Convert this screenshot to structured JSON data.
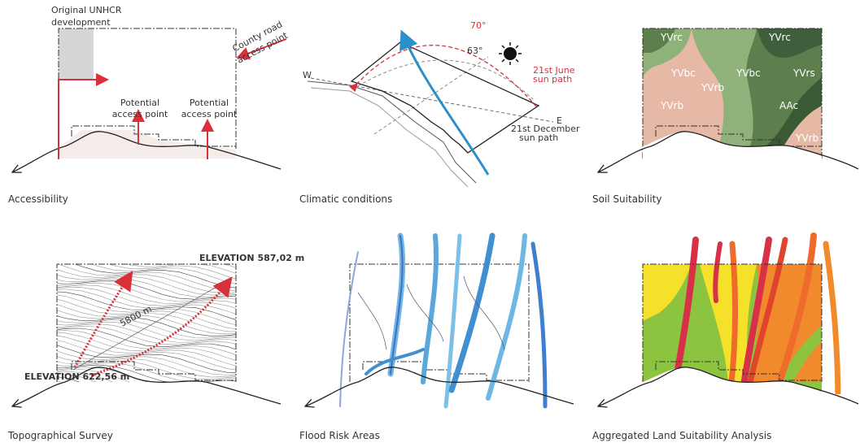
{
  "panels": [
    {
      "caption": "Accessibility",
      "labels": [
        "Original UNHCR",
        "development",
        "County road",
        "access point",
        "Potential",
        "access point",
        "Potential",
        "access point"
      ]
    },
    {
      "caption": "Climatic conditions",
      "labels": [
        "70°",
        "63°",
        "21st June",
        "sun path",
        "21st December",
        "sun path",
        "W",
        "E"
      ]
    },
    {
      "caption": "Soil Suitability",
      "labels": [
        "YVrc",
        "YVrc",
        "YVbc",
        "YVbc",
        "YVrs",
        "YVrb",
        "YVrb",
        "AAc",
        "YVrb"
      ]
    },
    {
      "caption": "Topographical Survey",
      "labels": [
        "ELEVATION 587,02 m",
        "ELEVATION 622,56 m",
        "5800 m"
      ]
    },
    {
      "caption": "Flood Risk Areas",
      "labels": []
    },
    {
      "caption": "Aggregated Land Suitability Analysis",
      "labels": []
    }
  ]
}
